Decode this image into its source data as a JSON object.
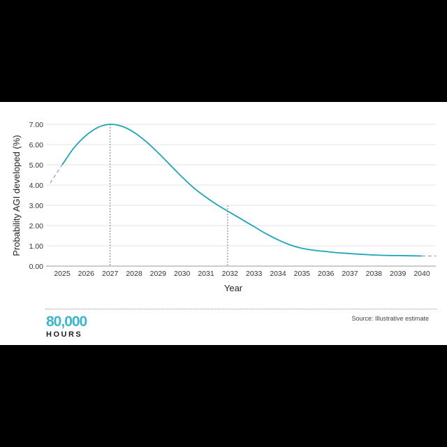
{
  "chart_data": {
    "type": "line",
    "xlabel": "Year",
    "ylabel": "Probability AGI developed (%)",
    "x_ticks": [
      "2025",
      "2026",
      "2027",
      "2028",
      "2029",
      "2030",
      "2031",
      "2032",
      "2033",
      "2034",
      "2035",
      "2036",
      "2037",
      "2038",
      "2039",
      "2040"
    ],
    "y_ticks": [
      "0.00",
      "1.00",
      "2.00",
      "3.00",
      "4.00",
      "5.00",
      "6.00",
      "7.00"
    ],
    "xlim": [
      2024.5,
      2040.6
    ],
    "ylim": [
      0,
      7
    ],
    "grid": "horizontal",
    "line_color": "#1fa3b8",
    "dash_color": "#aaaaaa",
    "series": [
      {
        "x": [
          2025,
          2025.5,
          2026,
          2026.5,
          2027,
          2027.5,
          2028,
          2028.5,
          2029,
          2029.5,
          2030,
          2030.5,
          2031,
          2031.5,
          2032,
          2032.5,
          2033,
          2033.5,
          2034,
          2034.5,
          2035,
          2035.5,
          2036,
          2036.5,
          2037,
          2037.5,
          2038,
          2038.5,
          2039,
          2039.5,
          2040
        ],
        "y": [
          5.0,
          5.85,
          6.45,
          6.85,
          7.0,
          6.9,
          6.6,
          6.15,
          5.6,
          5.0,
          4.4,
          3.85,
          3.4,
          3.0,
          2.65,
          2.3,
          1.95,
          1.6,
          1.3,
          1.05,
          0.88,
          0.78,
          0.72,
          0.66,
          0.62,
          0.58,
          0.55,
          0.53,
          0.52,
          0.51,
          0.5
        ]
      }
    ],
    "dashed_extensions": {
      "left": {
        "x": [
          2024.5,
          2025
        ],
        "y": [
          4.1,
          5.0
        ]
      },
      "right": {
        "x": [
          2040,
          2040.6
        ],
        "y": [
          0.5,
          0.5
        ]
      }
    },
    "reference_lines": [
      {
        "x": 2027,
        "y": 7.0
      },
      {
        "x": 2031.9,
        "y": 3.0
      }
    ]
  },
  "branding": {
    "logo_number": "80,000",
    "logo_word": "HOURS"
  },
  "source": "Source: Illustrative estimate"
}
